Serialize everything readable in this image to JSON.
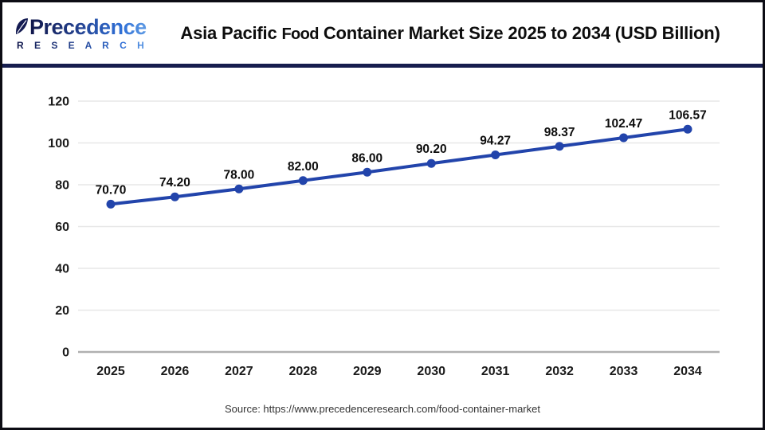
{
  "header": {
    "logo": {
      "name": "Precedence Research logo",
      "line1": "Precedence",
      "line2": "R E S E A R C H"
    },
    "title_parts": [
      "Asia Pacific",
      "Food",
      "Container Market Size 2025 to 2034 (USD Billion)"
    ]
  },
  "chart_data": {
    "type": "line",
    "title": "Asia Pacific Food Container Market Size 2025 to 2034 (USD Billion)",
    "categories": [
      "2025",
      "2026",
      "2027",
      "2028",
      "2029",
      "2030",
      "2031",
      "2032",
      "2033",
      "2034"
    ],
    "values": [
      70.7,
      74.2,
      78.0,
      82.0,
      86.0,
      90.2,
      94.27,
      98.37,
      102.47,
      106.57
    ],
    "labels": [
      "70.70",
      "74.20",
      "78.00",
      "82.00",
      "86.00",
      "90.20",
      "94.27",
      "98.37",
      "102.47",
      "106.57"
    ],
    "xlabel": "",
    "ylabel": "",
    "ylim": [
      0,
      120
    ],
    "yticks": [
      0,
      20,
      40,
      60,
      80,
      100,
      120
    ],
    "grid": true,
    "legend": "none",
    "line_color": "#2244ab",
    "marker_color": "#2244ab",
    "grid_color": "#e7e7e7",
    "baseline_color": "#b0b0b0",
    "tick_text_color": "#1a1a1a",
    "data_label_color": "#0d0d0d"
  },
  "footer": {
    "source": "Source: https://www.precedenceresearch.com/food-container-market"
  },
  "colors": {
    "header_rule": "#161d4e",
    "frame_border": "#0c0c14",
    "logo_navy": "#10164a",
    "logo_blue": "#2f6fd6"
  }
}
